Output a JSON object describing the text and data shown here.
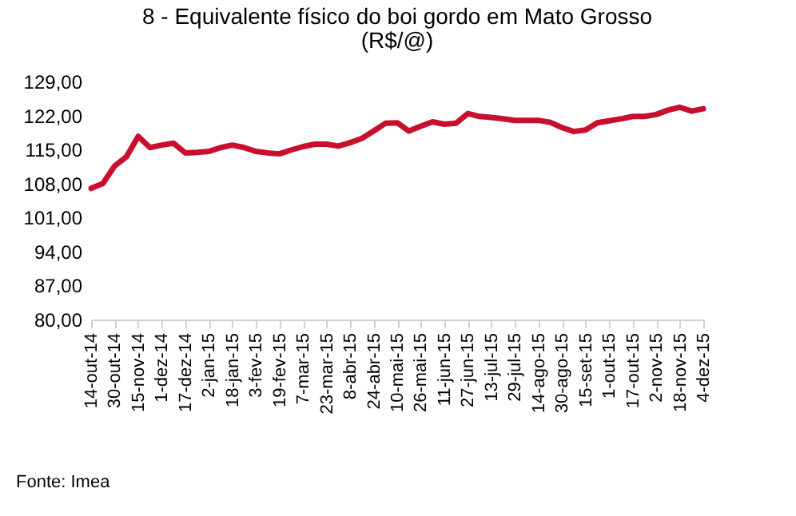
{
  "chart_data": {
    "type": "line",
    "title": "8 - Equivalente físico do boi gordo em Mato Grosso",
    "subtitle": "(R$/@)",
    "categories": [
      "14-out-14",
      null,
      "30-out-14",
      null,
      "15-nov-14",
      null,
      "1-dez-14",
      null,
      "17-dez-14",
      null,
      "2-jan-15",
      null,
      "18-jan-15",
      null,
      "3-fev-15",
      null,
      "19-fev-15",
      null,
      "7-mar-15",
      null,
      "23-mar-15",
      null,
      "8-abr-15",
      null,
      "24-abr-15",
      null,
      "10-mai-15",
      null,
      "26-mai-15",
      null,
      "11-jun-15",
      null,
      "27-jun-15",
      null,
      "13-jul-15",
      null,
      "29-jul-15",
      null,
      "14-ago-15",
      null,
      "30-ago-15",
      null,
      "15-set-15",
      null,
      "1-out-15",
      null,
      "17-out-15",
      null,
      "2-nov-15",
      null,
      "18-nov-15",
      null,
      "4-dez-15"
    ],
    "series": [
      {
        "color": "#c8102e",
        "values": [
          107.0,
          108.0,
          111.6,
          113.5,
          117.7,
          115.4,
          115.9,
          116.3,
          114.3,
          114.4,
          114.6,
          115.4,
          115.9,
          115.4,
          114.6,
          114.3,
          114.1,
          114.9,
          115.6,
          116.1,
          116.1,
          115.7,
          116.4,
          117.3,
          118.8,
          120.4,
          120.5,
          118.8,
          119.8,
          120.7,
          120.2,
          120.4,
          122.4,
          121.8,
          121.6,
          121.3,
          121.0,
          121.0,
          121.0,
          120.6,
          119.5,
          118.7,
          119.0,
          120.5,
          120.9,
          121.3,
          121.8,
          121.8,
          122.2,
          123.1,
          123.7,
          122.9,
          123.4
        ]
      }
    ],
    "ylim": [
      80,
      129
    ],
    "yticks": [
      {
        "value": 80,
        "label": "80,00"
      },
      {
        "value": 87,
        "label": "87,00"
      },
      {
        "value": 94,
        "label": "94,00"
      },
      {
        "value": 101,
        "label": "101,00"
      },
      {
        "value": 108,
        "label": "108,00"
      },
      {
        "value": 115,
        "label": "115,00"
      },
      {
        "value": 122,
        "label": "122,00"
      },
      {
        "value": 129,
        "label": "129,00"
      }
    ],
    "grid": false,
    "marker": "none",
    "line_style": "solid",
    "annotations": [
      "Fonte: Imea"
    ]
  }
}
